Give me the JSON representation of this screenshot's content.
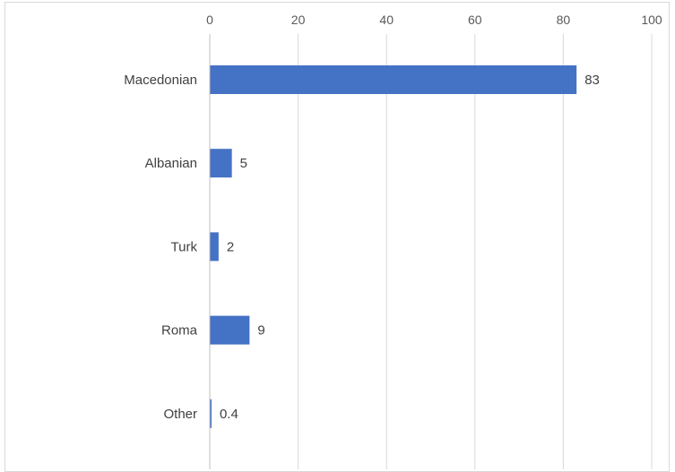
{
  "chart_data": {
    "type": "bar",
    "orientation": "horizontal",
    "categories": [
      "Macedonian",
      "Albanian",
      "Turk",
      "Roma",
      "Other"
    ],
    "values": [
      83,
      5,
      2,
      9,
      0.4
    ],
    "value_labels": [
      "83",
      "5",
      "2",
      "9",
      "0.4"
    ],
    "xlim": [
      0,
      100
    ],
    "x_ticks": [
      0,
      20,
      40,
      60,
      80,
      100
    ],
    "x_tick_labels": [
      "0",
      "20",
      "40",
      "60",
      "80",
      "100"
    ],
    "x_axis_position": "top",
    "grid": true,
    "legend": "none",
    "colors": {
      "bar": "#4472c4",
      "grid": "#d9d9d9",
      "axis_line": "#bfbfbf"
    }
  }
}
